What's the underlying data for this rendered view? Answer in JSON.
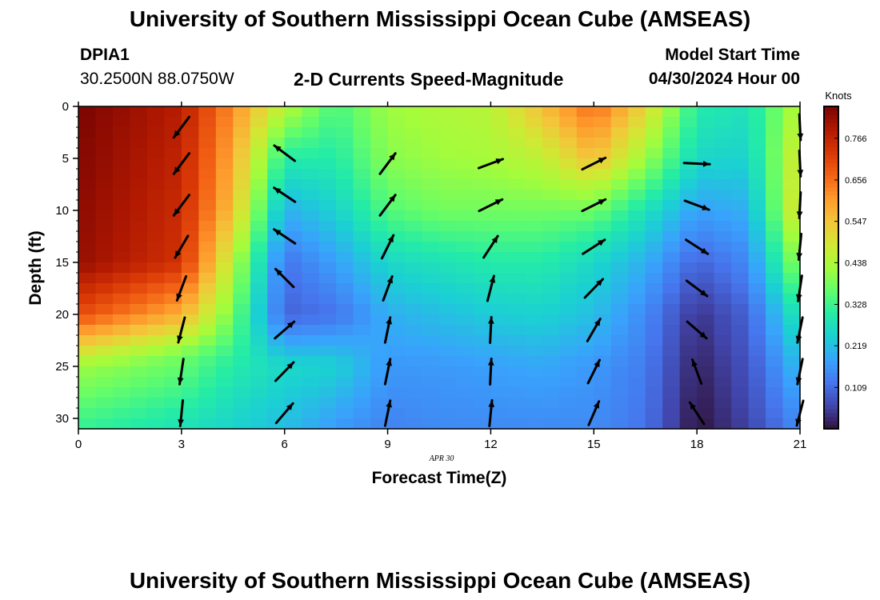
{
  "header": {
    "title_top": "University of Southern Mississippi Ocean Cube (AMSEAS)",
    "station_id": "DPIA1",
    "station_coords": "30.2500N  88.0750W",
    "plot_title": "2-D Currents Speed-Magnitude",
    "model_label": "Model Start Time",
    "model_time": "04/30/2024 Hour 00",
    "title_bottom": "University of Southern Mississippi Ocean Cube (AMSEAS)"
  },
  "chart_data": {
    "type": "heatmap",
    "title": "2-D Currents Speed-Magnitude",
    "xlabel": "Forecast Time(Z)",
    "ylabel": "Depth (ft)",
    "date_label": "APR  30",
    "xlim": [
      0,
      21
    ],
    "ylim": [
      31,
      0
    ],
    "x_ticks": [
      0,
      3,
      6,
      9,
      12,
      15,
      18,
      21
    ],
    "y_ticks": [
      0,
      5,
      10,
      15,
      20,
      25,
      30
    ],
    "colorbar": {
      "label": "Knots",
      "min": 0.0,
      "max": 0.85,
      "ticks": [
        "0.766",
        "0.656",
        "0.547",
        "0.438",
        "0.328",
        "0.219",
        "0.109"
      ],
      "tick_values": [
        0.766,
        0.656,
        0.547,
        0.438,
        0.328,
        0.219,
        0.109
      ],
      "colors": [
        "#30123b",
        "#4145ab",
        "#4675ed",
        "#39a2fc",
        "#1bcfd4",
        "#24eca6",
        "#61fc6c",
        "#a4fc3b",
        "#d1e834",
        "#f3c63a",
        "#fe9b2d",
        "#f36315",
        "#d93806",
        "#b11901",
        "#7a0402"
      ]
    },
    "speed_profiles": [
      {
        "time": 0,
        "speeds": [
          [
            0,
            0.85
          ],
          [
            15,
            0.82
          ],
          [
            20,
            0.7
          ],
          [
            25,
            0.42
          ],
          [
            31,
            0.32
          ]
        ]
      },
      {
        "time": 3,
        "speeds": [
          [
            0,
            0.78
          ],
          [
            15,
            0.74
          ],
          [
            20,
            0.58
          ],
          [
            24,
            0.38
          ],
          [
            31,
            0.28
          ]
        ]
      },
      {
        "time": 4.5,
        "speeds": [
          [
            0,
            0.62
          ],
          [
            10,
            0.55
          ],
          [
            15,
            0.45
          ],
          [
            20,
            0.38
          ],
          [
            25,
            0.3
          ],
          [
            31,
            0.25
          ]
        ]
      },
      {
        "time": 6,
        "speeds": [
          [
            0,
            0.45
          ],
          [
            5,
            0.3
          ],
          [
            10,
            0.2
          ],
          [
            15,
            0.12
          ],
          [
            20,
            0.1
          ],
          [
            25,
            0.26
          ],
          [
            31,
            0.22
          ]
        ]
      },
      {
        "time": 7.5,
        "speeds": [
          [
            0,
            0.34
          ],
          [
            5,
            0.3
          ],
          [
            10,
            0.25
          ],
          [
            15,
            0.18
          ],
          [
            20,
            0.12
          ],
          [
            25,
            0.25
          ],
          [
            31,
            0.17
          ]
        ]
      },
      {
        "time": 9,
        "speeds": [
          [
            0,
            0.42
          ],
          [
            5,
            0.4
          ],
          [
            10,
            0.35
          ],
          [
            15,
            0.26
          ],
          [
            20,
            0.2
          ],
          [
            25,
            0.17
          ],
          [
            31,
            0.14
          ]
        ]
      },
      {
        "time": 10.5,
        "speeds": [
          [
            0,
            0.44
          ],
          [
            5,
            0.42
          ],
          [
            10,
            0.38
          ],
          [
            15,
            0.28
          ],
          [
            20,
            0.22
          ],
          [
            25,
            0.17
          ],
          [
            31,
            0.15
          ]
        ]
      },
      {
        "time": 12,
        "speeds": [
          [
            0,
            0.45
          ],
          [
            5,
            0.43
          ],
          [
            10,
            0.38
          ],
          [
            15,
            0.3
          ],
          [
            20,
            0.24
          ],
          [
            25,
            0.18
          ],
          [
            31,
            0.15
          ]
        ]
      },
      {
        "time": 13.5,
        "speeds": [
          [
            0,
            0.56
          ],
          [
            5,
            0.46
          ],
          [
            10,
            0.38
          ],
          [
            15,
            0.3
          ],
          [
            20,
            0.25
          ],
          [
            25,
            0.19
          ],
          [
            31,
            0.15
          ]
        ]
      },
      {
        "time": 15,
        "speeds": [
          [
            0,
            0.66
          ],
          [
            5,
            0.56
          ],
          [
            8,
            0.44
          ],
          [
            12,
            0.32
          ],
          [
            15,
            0.26
          ],
          [
            20,
            0.22
          ],
          [
            25,
            0.17
          ],
          [
            31,
            0.15
          ]
        ]
      },
      {
        "time": 16.5,
        "speeds": [
          [
            0,
            0.52
          ],
          [
            5,
            0.42
          ],
          [
            10,
            0.28
          ],
          [
            15,
            0.2
          ],
          [
            20,
            0.15
          ],
          [
            25,
            0.13
          ],
          [
            31,
            0.12
          ]
        ]
      },
      {
        "time": 18,
        "speeds": [
          [
            0,
            0.3
          ],
          [
            5,
            0.26
          ],
          [
            10,
            0.18
          ],
          [
            15,
            0.1
          ],
          [
            20,
            0.04
          ],
          [
            25,
            0.02
          ],
          [
            31,
            0.0
          ]
        ]
      },
      {
        "time": 19.5,
        "speeds": [
          [
            0,
            0.28
          ],
          [
            5,
            0.25
          ],
          [
            10,
            0.2
          ],
          [
            15,
            0.15
          ],
          [
            20,
            0.1
          ],
          [
            25,
            0.08
          ],
          [
            31,
            0.06
          ]
        ]
      },
      {
        "time": 21,
        "speeds": [
          [
            0,
            0.45
          ],
          [
            5,
            0.5
          ],
          [
            10,
            0.52
          ],
          [
            15,
            0.42
          ],
          [
            20,
            0.3
          ],
          [
            25,
            0.22
          ],
          [
            31,
            0.15
          ]
        ]
      }
    ],
    "vectors": [
      {
        "time": 3,
        "depth": 0.5,
        "u": -0.6,
        "v": -0.8
      },
      {
        "time": 3,
        "depth": 4,
        "u": -0.6,
        "v": -0.8
      },
      {
        "time": 3,
        "depth": 8,
        "u": -0.6,
        "v": -0.8
      },
      {
        "time": 3,
        "depth": 12,
        "u": -0.5,
        "v": -0.85
      },
      {
        "time": 3,
        "depth": 16,
        "u": -0.35,
        "v": -0.94
      },
      {
        "time": 3,
        "depth": 20,
        "u": -0.25,
        "v": -0.97
      },
      {
        "time": 3,
        "depth": 24,
        "u": -0.15,
        "v": -0.99
      },
      {
        "time": 3,
        "depth": 28,
        "u": -0.1,
        "v": -1.0
      },
      {
        "time": 6,
        "depth": 3,
        "u": -0.8,
        "v": 0.6
      },
      {
        "time": 6,
        "depth": 7,
        "u": -0.82,
        "v": 0.55
      },
      {
        "time": 6,
        "depth": 11,
        "u": -0.82,
        "v": 0.55
      },
      {
        "time": 6,
        "depth": 15,
        "u": -0.7,
        "v": 0.7
      },
      {
        "time": 6,
        "depth": 20,
        "u": 0.75,
        "v": 0.65
      },
      {
        "time": 6,
        "depth": 24,
        "u": 0.7,
        "v": 0.72
      },
      {
        "time": 6,
        "depth": 28,
        "u": 0.65,
        "v": 0.76
      },
      {
        "time": 9,
        "depth": 4,
        "u": 0.6,
        "v": 0.8
      },
      {
        "time": 9,
        "depth": 8,
        "u": 0.6,
        "v": 0.8
      },
      {
        "time": 9,
        "depth": 12,
        "u": 0.45,
        "v": 0.9
      },
      {
        "time": 9,
        "depth": 16,
        "u": 0.35,
        "v": 0.94
      },
      {
        "time": 9,
        "depth": 20,
        "u": 0.2,
        "v": 0.98
      },
      {
        "time": 9,
        "depth": 24,
        "u": 0.2,
        "v": 0.98
      },
      {
        "time": 9,
        "depth": 28,
        "u": 0.2,
        "v": 0.98
      },
      {
        "time": 12,
        "depth": 4,
        "u": 0.94,
        "v": 0.35
      },
      {
        "time": 12,
        "depth": 8,
        "u": 0.9,
        "v": 0.45
      },
      {
        "time": 12,
        "depth": 12,
        "u": 0.55,
        "v": 0.84
      },
      {
        "time": 12,
        "depth": 16,
        "u": 0.25,
        "v": 0.97
      },
      {
        "time": 12,
        "depth": 20,
        "u": 0.05,
        "v": 1.0
      },
      {
        "time": 12,
        "depth": 24,
        "u": 0.05,
        "v": 1.0
      },
      {
        "time": 12,
        "depth": 28,
        "u": 0.1,
        "v": 1.0
      },
      {
        "time": 15,
        "depth": 4,
        "u": 0.9,
        "v": 0.45
      },
      {
        "time": 15,
        "depth": 8,
        "u": 0.9,
        "v": 0.45
      },
      {
        "time": 15,
        "depth": 12,
        "u": 0.85,
        "v": 0.55
      },
      {
        "time": 15,
        "depth": 16,
        "u": 0.7,
        "v": 0.72
      },
      {
        "time": 15,
        "depth": 20,
        "u": 0.5,
        "v": 0.87
      },
      {
        "time": 15,
        "depth": 24,
        "u": 0.45,
        "v": 0.9
      },
      {
        "time": 15,
        "depth": 28,
        "u": 0.4,
        "v": 0.92
      },
      {
        "time": 18,
        "depth": 4,
        "u": 1.0,
        "v": -0.05
      },
      {
        "time": 18,
        "depth": 8,
        "u": 0.94,
        "v": -0.35
      },
      {
        "time": 18,
        "depth": 12,
        "u": 0.85,
        "v": -0.55
      },
      {
        "time": 18,
        "depth": 16,
        "u": 0.8,
        "v": -0.6
      },
      {
        "time": 18,
        "depth": 20,
        "u": 0.75,
        "v": -0.65
      },
      {
        "time": 18,
        "depth": 24,
        "u": -0.35,
        "v": 0.94
      },
      {
        "time": 18,
        "depth": 28,
        "u": -0.55,
        "v": 0.84
      },
      {
        "time": 21,
        "depth": 0.5,
        "u": 0.05,
        "v": -1.0
      },
      {
        "time": 21,
        "depth": 4,
        "u": 0.05,
        "v": -1.0
      },
      {
        "time": 21,
        "depth": 8,
        "u": -0.05,
        "v": -1.0
      },
      {
        "time": 21,
        "depth": 12,
        "u": -0.1,
        "v": -1.0
      },
      {
        "time": 21,
        "depth": 16,
        "u": -0.15,
        "v": -0.99
      },
      {
        "time": 21,
        "depth": 20,
        "u": -0.2,
        "v": -0.98
      },
      {
        "time": 21,
        "depth": 24,
        "u": -0.2,
        "v": -0.98
      },
      {
        "time": 21,
        "depth": 28,
        "u": -0.25,
        "v": -0.97
      }
    ]
  }
}
